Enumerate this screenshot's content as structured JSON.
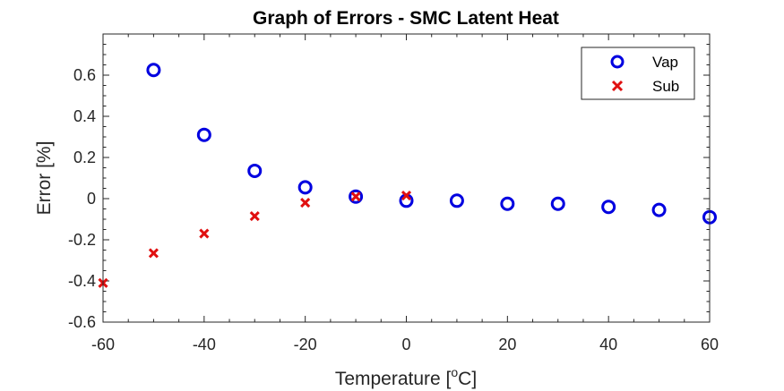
{
  "chart_data": {
    "type": "scatter",
    "title": "Graph of Errors - SMC Latent Heat",
    "xlabel": "Temperature [",
    "xlabel_sup": "o",
    "xlabel_end": "C]",
    "ylabel": "Error [%]",
    "xlim": [
      -60,
      60
    ],
    "ylim": [
      -0.6,
      0.8
    ],
    "xticks": [
      -60,
      -40,
      -20,
      0,
      20,
      40,
      60
    ],
    "xtick_labels": [
      "-60",
      "-40",
      "-20",
      "0",
      "20",
      "40",
      "60"
    ],
    "yticks": [
      -0.6,
      -0.4,
      -0.2,
      0,
      0.2,
      0.4,
      0.6
    ],
    "ytick_labels": [
      "-0.6",
      "-0.4",
      "-0.2",
      "0",
      "0.2",
      "0.4",
      "0.6"
    ],
    "grid": false,
    "legend_position": "top-right",
    "series": [
      {
        "name": "Vap",
        "marker": "circle",
        "color": "#0000e0",
        "x": [
          -50,
          -40,
          -30,
          -20,
          -10,
          0,
          10,
          20,
          30,
          40,
          50,
          60
        ],
        "y": [
          0.625,
          0.31,
          0.135,
          0.055,
          0.01,
          -0.01,
          -0.01,
          -0.025,
          -0.025,
          -0.04,
          -0.055,
          -0.09
        ]
      },
      {
        "name": "Sub",
        "marker": "x",
        "color": "#e01010",
        "x": [
          -60,
          -50,
          -40,
          -30,
          -20,
          -10,
          0
        ],
        "y": [
          -0.41,
          -0.265,
          -0.17,
          -0.085,
          -0.02,
          0.01,
          0.015
        ]
      }
    ]
  }
}
